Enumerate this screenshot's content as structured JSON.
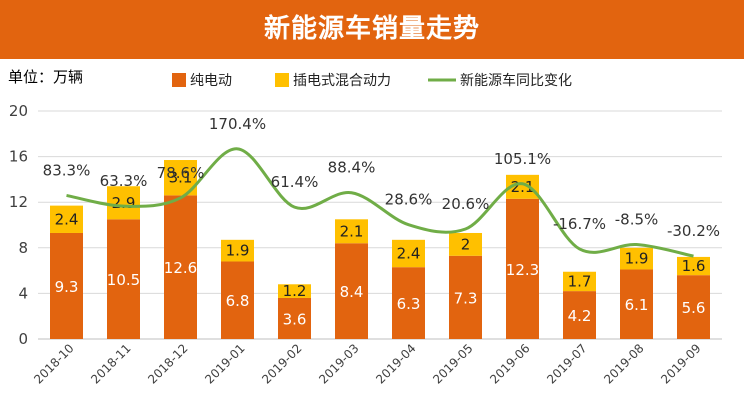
{
  "title": "新能源车销量走势",
  "unit": "单位：万辆",
  "colors": {
    "title_bg": "#e2640f",
    "bev": "#e2640f",
    "phev": "#ffc000",
    "line": "#70ad47",
    "grid": "#d9d9d9",
    "axis_text": "#404040"
  },
  "chart_data": {
    "type": "bar",
    "stacked": true,
    "categories": [
      "2018-10",
      "2018-11",
      "2018-12",
      "2019-01",
      "2019-02",
      "2019-03",
      "2019-04",
      "2019-05",
      "2019-06",
      "2019-07",
      "2019-08",
      "2019-09"
    ],
    "series": [
      {
        "name": "纯电动",
        "values": [
          9.3,
          10.5,
          12.6,
          6.8,
          3.6,
          8.4,
          6.3,
          7.3,
          12.3,
          4.2,
          6.1,
          5.6
        ]
      },
      {
        "name": "插电式混合动力",
        "values": [
          2.4,
          2.9,
          3.1,
          1.9,
          1.2,
          2.1,
          2.4,
          2.0,
          2.1,
          1.7,
          1.9,
          1.6
        ]
      }
    ],
    "line_series": {
      "name": "新能源车同比变化",
      "labels": [
        "83.3%",
        "63.3%",
        "78.6%",
        "170.4%",
        "61.4%",
        "88.4%",
        "28.6%",
        "20.6%",
        "105.1%",
        "-16.7%",
        "-8.5%",
        "-30.2%"
      ]
    },
    "yaxis": {
      "ticks": [
        "0",
        "4",
        "8",
        "12",
        "16",
        "20"
      ],
      "ylim": [
        0,
        20
      ]
    },
    "legend_position": "top",
    "grid": true
  }
}
